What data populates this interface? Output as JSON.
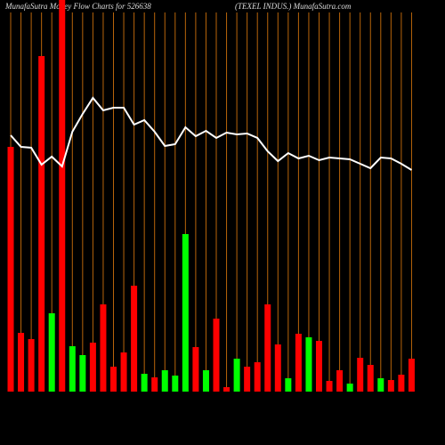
{
  "chart_data": {
    "type": "bar",
    "title": "MunafaSutra  Money Flow  Charts for 526638",
    "subtitle": "(TEXEL  INDUS.) MunafaSutra.com",
    "categories": [
      null,
      null,
      null,
      null,
      null,
      null,
      null,
      null,
      null,
      null,
      null,
      null,
      null,
      null,
      null,
      null,
      null,
      null,
      null,
      null,
      null,
      null,
      null,
      null,
      null,
      null,
      null,
      null,
      null,
      null,
      null,
      null,
      null,
      null,
      null,
      null,
      null,
      null,
      null,
      null
    ],
    "bars": {
      "values": [
        275,
        66,
        59,
        377,
        88,
        450,
        51,
        41,
        55,
        98,
        28,
        44,
        119,
        20,
        16,
        24,
        18,
        177,
        50,
        24,
        82,
        5,
        37,
        28,
        33,
        98,
        53,
        15,
        65,
        61,
        57,
        12,
        24,
        9,
        38,
        30,
        15,
        13,
        19,
        37
      ],
      "colors": [
        "#ff0000",
        "#ff0000",
        "#ff0000",
        "#ff0000",
        "#00ff00",
        "#ff0000",
        "#00ff00",
        "#00ff00",
        "#ff0000",
        "#ff0000",
        "#ff0000",
        "#ff0000",
        "#ff0000",
        "#00ff00",
        "#ff0000",
        "#00ff00",
        "#00ff00",
        "#00ff00",
        "#ff0000",
        "#00ff00",
        "#ff0000",
        "#ff0000",
        "#00ff00",
        "#ff0000",
        "#ff0000",
        "#ff0000",
        "#ff0000",
        "#00ff00",
        "#ff0000",
        "#00ff00",
        "#ff0000",
        "#ff0000",
        "#ff0000",
        "#00ff00",
        "#ff0000",
        "#ff0000",
        "#00ff00",
        "#ff0000",
        "#ff0000",
        "#ff0000"
      ]
    },
    "line": {
      "values": [
        288,
        275,
        274,
        255,
        264,
        253,
        292,
        312,
        330,
        316,
        319,
        319,
        300,
        305,
        292,
        276,
        278,
        297,
        287,
        293,
        285,
        291,
        289,
        290,
        285,
        270,
        259,
        268,
        262,
        265,
        260,
        263,
        262,
        261,
        256,
        251,
        263,
        262,
        256,
        249
      ],
      "color": "#ffffff"
    },
    "ylim": [
      0,
      440
    ],
    "grid": true,
    "grid_color": "#b8650a"
  }
}
